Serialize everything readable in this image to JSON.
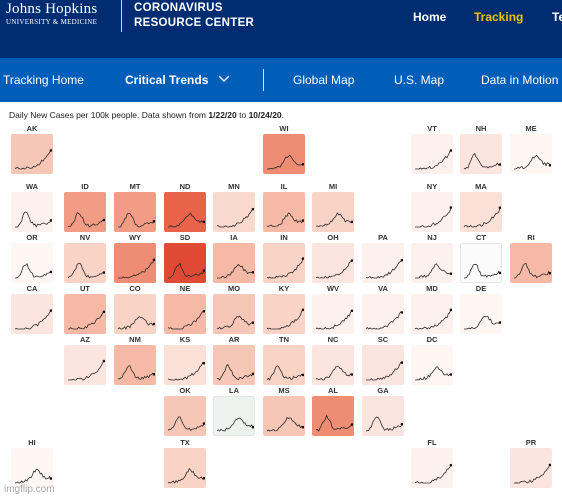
{
  "header": {
    "logo_name": "Johns Hopkins",
    "logo_sub": "UNIVERSITY & MEDICINE",
    "site_title_line1": "CORONAVIRUS",
    "site_title_line2": "RESOURCE CENTER",
    "nav": [
      "Home",
      "Tracking",
      "Te"
    ],
    "active_nav": "Tracking",
    "active_color": "#f1c400",
    "bar_color": "#002d72"
  },
  "subnav": {
    "items": [
      "Tracking Home",
      "Critical Trends",
      "Global Map",
      "U.S. Map",
      "Data in Motion"
    ],
    "active": "Critical Trends",
    "dropdown_icon": "chevron-down-icon",
    "bar_color": "#005eb8"
  },
  "caption": {
    "prefix": "Daily New Cases per 100k people. Data shown from ",
    "start_date": "1/22/20",
    "middle": " to ",
    "end_date": "10/24/20",
    "suffix": "."
  },
  "tiles": [
    {
      "state": "AK",
      "row": 0,
      "col": 0,
      "color": "#f6c6b7"
    },
    {
      "state": "WI",
      "row": 0,
      "col": 5,
      "color": "#ef8c74"
    },
    {
      "state": "VT",
      "row": 0,
      "col": 8,
      "color": "#fdf1ed"
    },
    {
      "state": "NH",
      "row": 0,
      "col": 9,
      "color": "#fbe5de"
    },
    {
      "state": "ME",
      "row": 0,
      "col": 10,
      "color": "#fdf6f3"
    },
    {
      "state": "WA",
      "row": 1,
      "col": 0,
      "color": "#fdf1ed"
    },
    {
      "state": "ID",
      "row": 1,
      "col": 1,
      "color": "#f29c85"
    },
    {
      "state": "MT",
      "row": 1,
      "col": 2,
      "color": "#f29c85"
    },
    {
      "state": "ND",
      "row": 1,
      "col": 3,
      "color": "#e8634a"
    },
    {
      "state": "MN",
      "row": 1,
      "col": 4,
      "color": "#f9d9ce"
    },
    {
      "state": "IL",
      "row": 1,
      "col": 5,
      "color": "#f6b9a6"
    },
    {
      "state": "MI",
      "row": 1,
      "col": 6,
      "color": "#f9d3c6"
    },
    {
      "state": "NY",
      "row": 1,
      "col": 8,
      "color": "#fdf1ed"
    },
    {
      "state": "MA",
      "row": 1,
      "col": 9,
      "color": "#fbe0d8"
    },
    {
      "state": "OR",
      "row": 2,
      "col": 0,
      "color": "#fdf6f3"
    },
    {
      "state": "NV",
      "row": 2,
      "col": 1,
      "color": "#f9d3c6"
    },
    {
      "state": "WY",
      "row": 2,
      "col": 2,
      "color": "#ef8c74"
    },
    {
      "state": "SD",
      "row": 2,
      "col": 3,
      "color": "#df4a35"
    },
    {
      "state": "IA",
      "row": 2,
      "col": 4,
      "color": "#f6b9a6"
    },
    {
      "state": "IN",
      "row": 2,
      "col": 5,
      "color": "#f9d3c6"
    },
    {
      "state": "OH",
      "row": 2,
      "col": 6,
      "color": "#fbe5de"
    },
    {
      "state": "PA",
      "row": 2,
      "col": 7,
      "color": "#fdf1ed"
    },
    {
      "state": "NJ",
      "row": 2,
      "col": 8,
      "color": "#fdf1ed"
    },
    {
      "state": "CT",
      "row": 2,
      "col": 9,
      "color": "#fbfbfb"
    },
    {
      "state": "RI",
      "row": 2,
      "col": 10,
      "color": "#f6b9a6"
    },
    {
      "state": "CA",
      "row": 3,
      "col": 0,
      "color": "#fbe5de"
    },
    {
      "state": "UT",
      "row": 3,
      "col": 1,
      "color": "#f6b9a6"
    },
    {
      "state": "CO",
      "row": 3,
      "col": 2,
      "color": "#f9d3c6"
    },
    {
      "state": "NE",
      "row": 3,
      "col": 3,
      "color": "#f6b9a6"
    },
    {
      "state": "MO",
      "row": 3,
      "col": 4,
      "color": "#f6c6b7"
    },
    {
      "state": "KY",
      "row": 3,
      "col": 5,
      "color": "#f9d3c6"
    },
    {
      "state": "WV",
      "row": 3,
      "col": 6,
      "color": "#fdf1ed"
    },
    {
      "state": "VA",
      "row": 3,
      "col": 7,
      "color": "#fdf1ed"
    },
    {
      "state": "MD",
      "row": 3,
      "col": 8,
      "color": "#fdf1ed"
    },
    {
      "state": "DE",
      "row": 3,
      "col": 9,
      "color": "#fdf6f3"
    },
    {
      "state": "AZ",
      "row": 4,
      "col": 1,
      "color": "#fbe5de"
    },
    {
      "state": "NM",
      "row": 4,
      "col": 2,
      "color": "#f6b9a6"
    },
    {
      "state": "KS",
      "row": 4,
      "col": 3,
      "color": "#fbe0d8"
    },
    {
      "state": "AR",
      "row": 4,
      "col": 4,
      "color": "#f6c6b7"
    },
    {
      "state": "TN",
      "row": 4,
      "col": 5,
      "color": "#f9d3c6"
    },
    {
      "state": "NC",
      "row": 4,
      "col": 6,
      "color": "#fbe5de"
    },
    {
      "state": "SC",
      "row": 4,
      "col": 7,
      "color": "#fbe5de"
    },
    {
      "state": "DC",
      "row": 4,
      "col": 8,
      "color": "#fdf6f3"
    },
    {
      "state": "OK",
      "row": 5,
      "col": 3,
      "color": "#f6c6b7"
    },
    {
      "state": "LA",
      "row": 5,
      "col": 4,
      "color": "#eef2ee"
    },
    {
      "state": "MS",
      "row": 5,
      "col": 5,
      "color": "#f6c6b7"
    },
    {
      "state": "AL",
      "row": 5,
      "col": 6,
      "color": "#ef8c74"
    },
    {
      "state": "GA",
      "row": 5,
      "col": 7,
      "color": "#fbe5de"
    },
    {
      "state": "HI",
      "row": 6,
      "col": 0,
      "color": "#fdf6f3"
    },
    {
      "state": "TX",
      "row": 6,
      "col": 3,
      "color": "#f9d3c6"
    },
    {
      "state": "FL",
      "row": 6,
      "col": 8,
      "color": "#fdf1ed"
    },
    {
      "state": "PR",
      "row": 6,
      "col": 10,
      "color": "#fbe5de"
    }
  ],
  "watermark": "imgflip.com"
}
